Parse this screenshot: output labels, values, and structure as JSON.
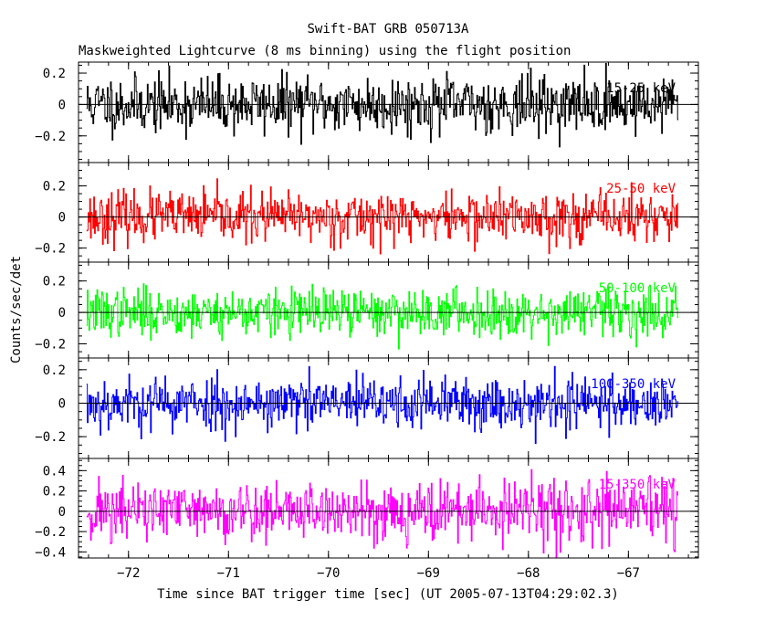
{
  "chart_data": {
    "type": "line",
    "title": "Swift-BAT GRB 050713A",
    "subtitle": "Maskweighted Lightcurve (8 ms binning) using the flight position",
    "xlabel": "Time since BAT trigger time [sec] (UT 2005-07-13T04:29:02.3)",
    "ylabel": "Counts/sec/det",
    "xlim": [
      -72.5,
      -66.3
    ],
    "data_x_range": [
      -72.42,
      -66.5
    ],
    "bin_width_sec": 0.008,
    "x_ticks": [
      -72,
      -71,
      -70,
      -69,
      -68,
      -67
    ],
    "x_tick_labels": [
      "−72",
      "−71",
      "−70",
      "−69",
      "−68",
      "−67"
    ],
    "grid": false,
    "zero_line": true,
    "panels": [
      {
        "name": "15-25 keV",
        "color": "#000000",
        "ylim": [
          -0.37,
          0.27
        ],
        "y_ticks": [
          -0.2,
          0,
          0.2
        ],
        "y_tick_labels": [
          "−0.2",
          "0",
          "0.2"
        ],
        "noise_sigma": 0.09,
        "seed": 11
      },
      {
        "name": "25-50 keV",
        "color": "#ff0000",
        "ylim": [
          -0.29,
          0.35
        ],
        "y_ticks": [
          -0.2,
          0,
          0.2
        ],
        "y_tick_labels": [
          "−0.2",
          "0",
          "0.2"
        ],
        "noise_sigma": 0.08,
        "seed": 23
      },
      {
        "name": "50-100 keV",
        "color": "#00ff00",
        "ylim": [
          -0.29,
          0.32
        ],
        "y_ticks": [
          -0.2,
          0,
          0.2
        ],
        "y_tick_labels": [
          "−0.2",
          "0",
          "0.2"
        ],
        "noise_sigma": 0.075,
        "seed": 37
      },
      {
        "name": "100-350 keV",
        "color": "#0000ff",
        "ylim": [
          -0.33,
          0.27
        ],
        "y_ticks": [
          -0.2,
          0,
          0.2
        ],
        "y_tick_labels": [
          "−0.2",
          "0",
          "0.2"
        ],
        "noise_sigma": 0.08,
        "seed": 53
      },
      {
        "name": "15-350 keV",
        "color": "#ff00ff",
        "ylim": [
          -0.46,
          0.52
        ],
        "y_ticks": [
          -0.4,
          -0.2,
          0,
          0.2,
          0.4
        ],
        "y_tick_labels": [
          "−0.4",
          "−0.2",
          "0",
          "0.2",
          "0.4"
        ],
        "noise_sigma": 0.15,
        "seed": 71
      }
    ]
  }
}
